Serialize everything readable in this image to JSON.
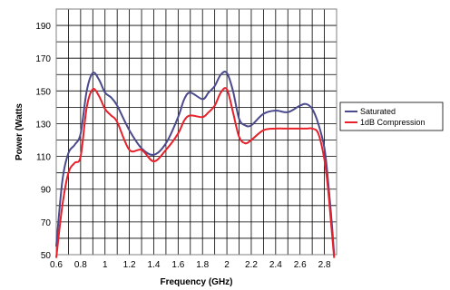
{
  "chart_data": {
    "type": "line",
    "xlabel": "Frequency (GHz)",
    "ylabel": "Power (Watts",
    "xlim": [
      0.6,
      2.9
    ],
    "ylim": [
      50,
      200
    ],
    "xticks": [
      0.6,
      0.8,
      1,
      1.2,
      1.4,
      1.6,
      1.8,
      2,
      2.2,
      2.4,
      2.6,
      2.8
    ],
    "xtick_labels": [
      "0.6",
      "0.8",
      "1",
      "1.2",
      "1.4",
      "1.6",
      "1.8",
      "2",
      "2.2",
      "2.4",
      "2.6",
      "2.8"
    ],
    "yticks": [
      50,
      70,
      90,
      110,
      130,
      150,
      170,
      190
    ],
    "ytick_labels": [
      "50",
      "70",
      "90",
      "110",
      "130",
      "150",
      "170",
      "190"
    ],
    "grid": true,
    "legend_position": "right",
    "series": [
      {
        "name": "Saturated",
        "color": "#4b4a8c",
        "x": [
          0.6,
          0.65,
          0.7,
          0.75,
          0.8,
          0.85,
          0.9,
          0.95,
          1.0,
          1.05,
          1.1,
          1.2,
          1.3,
          1.4,
          1.5,
          1.6,
          1.65,
          1.7,
          1.8,
          1.85,
          1.9,
          1.95,
          2.0,
          2.05,
          2.1,
          2.15,
          2.2,
          2.3,
          2.4,
          2.5,
          2.6,
          2.65,
          2.7,
          2.75,
          2.8,
          2.83,
          2.86,
          2.88
        ],
        "y": [
          55,
          95,
          112,
          117,
          124,
          150,
          161,
          157,
          149,
          146,
          141,
          126,
          115,
          111,
          118,
          134,
          145,
          149,
          145,
          149,
          153,
          160,
          161,
          150,
          133,
          129,
          129,
          136,
          138,
          137,
          141,
          142,
          139,
          130,
          115,
          95,
          70,
          50
        ]
      },
      {
        "name": "1dB Compression",
        "color": "#e8202a",
        "x": [
          0.6,
          0.65,
          0.7,
          0.75,
          0.8,
          0.85,
          0.9,
          0.95,
          1.0,
          1.05,
          1.1,
          1.2,
          1.3,
          1.4,
          1.5,
          1.6,
          1.65,
          1.7,
          1.8,
          1.85,
          1.9,
          1.95,
          2.0,
          2.05,
          2.1,
          2.15,
          2.2,
          2.3,
          2.4,
          2.5,
          2.6,
          2.65,
          2.7,
          2.75,
          2.8,
          2.83,
          2.86,
          2.88
        ],
        "y": [
          48,
          80,
          100,
          106,
          110,
          140,
          151,
          147,
          139,
          135,
          131,
          114,
          114,
          107,
          114,
          124,
          132,
          135,
          134,
          137,
          141,
          149,
          151,
          137,
          122,
          118,
          120,
          126,
          127,
          127,
          127,
          127,
          127,
          124,
          108,
          90,
          65,
          48
        ]
      }
    ]
  }
}
